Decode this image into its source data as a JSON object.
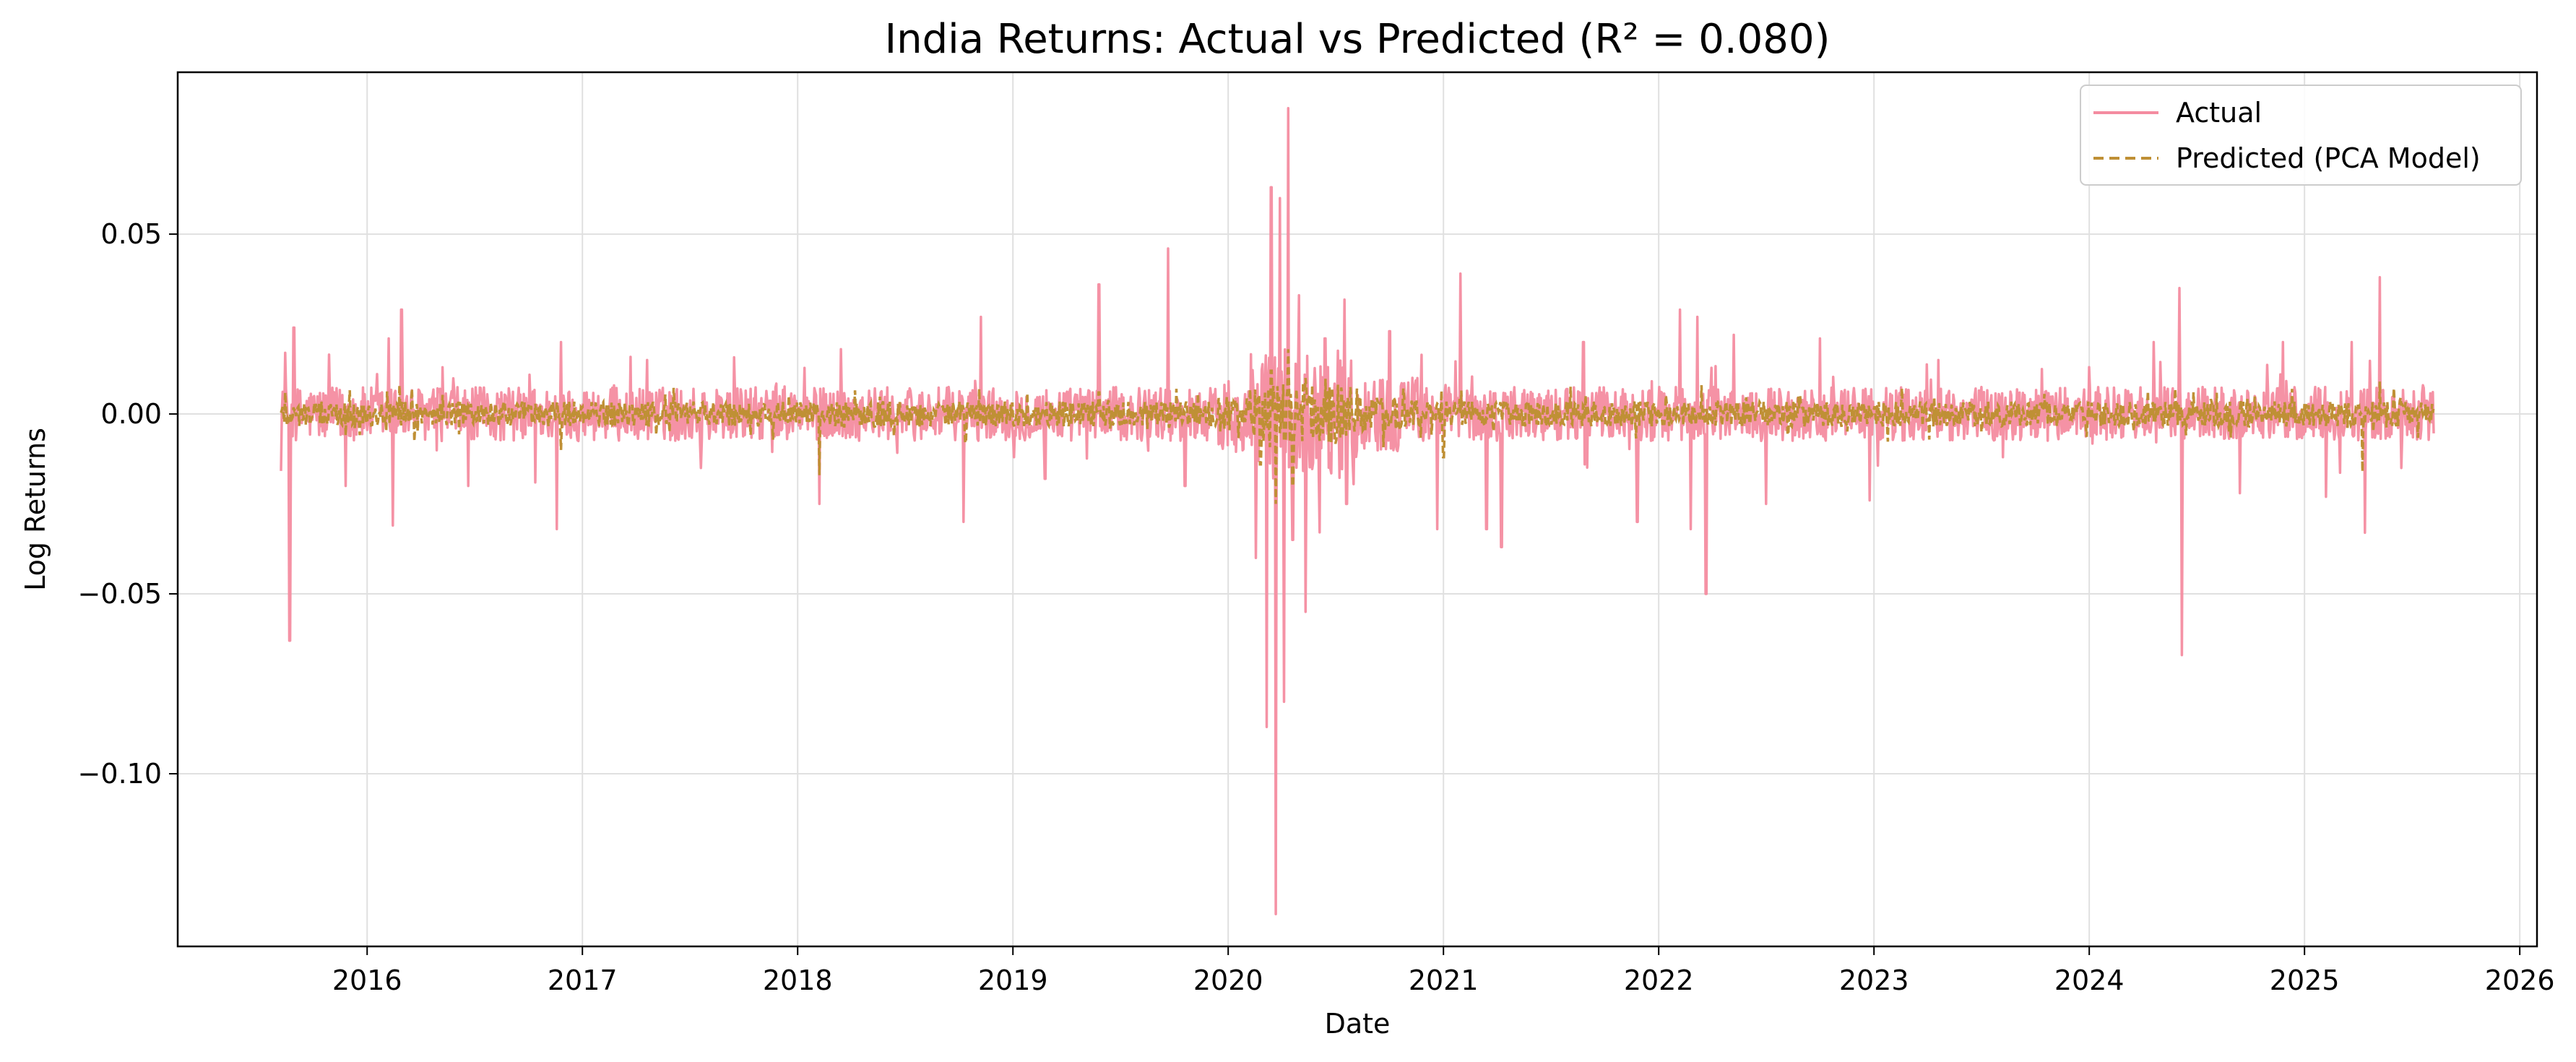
{
  "chart_data": {
    "type": "line",
    "title": "India Returns: Actual vs Predicted (R² = 0.080)",
    "xlabel": "Date",
    "ylabel": "Log Returns",
    "xlim": [
      2015.12,
      2026.08
    ],
    "ylim": [
      -0.148,
      0.095
    ],
    "x_ticks": [
      2016,
      2017,
      2018,
      2019,
      2020,
      2021,
      2022,
      2023,
      2024,
      2025,
      2026
    ],
    "y_ticks": [
      0.05,
      0.0,
      -0.05,
      -0.1
    ],
    "y_tick_labels": [
      "0.05",
      "0.00",
      "−0.05",
      "−0.10"
    ],
    "grid": true,
    "legend_position": "top-right",
    "series": [
      {
        "name": "Actual",
        "color": "#f48ca0",
        "style": "solid",
        "x_start": 2015.6,
        "x_end": 2025.6,
        "spikes": [
          [
            2015.62,
            0.017
          ],
          [
            2015.64,
            -0.063
          ],
          [
            2015.66,
            0.024
          ],
          [
            2015.9,
            -0.02
          ],
          [
            2016.1,
            0.021
          ],
          [
            2016.12,
            -0.031
          ],
          [
            2016.16,
            0.029
          ],
          [
            2016.47,
            -0.02
          ],
          [
            2016.78,
            -0.019
          ],
          [
            2016.88,
            -0.032
          ],
          [
            2016.9,
            0.02
          ],
          [
            2017.3,
            0.015
          ],
          [
            2017.55,
            -0.015
          ],
          [
            2018.1,
            -0.025
          ],
          [
            2018.2,
            0.018
          ],
          [
            2018.77,
            -0.03
          ],
          [
            2018.85,
            0.027
          ],
          [
            2019.15,
            -0.018
          ],
          [
            2019.4,
            0.036
          ],
          [
            2019.72,
            0.046
          ],
          [
            2019.8,
            -0.02
          ],
          [
            2020.13,
            -0.04
          ],
          [
            2020.18,
            -0.087
          ],
          [
            2020.2,
            0.063
          ],
          [
            2020.22,
            -0.139
          ],
          [
            2020.24,
            0.06
          ],
          [
            2020.26,
            -0.08
          ],
          [
            2020.28,
            0.085
          ],
          [
            2020.3,
            -0.035
          ],
          [
            2020.33,
            0.033
          ],
          [
            2020.36,
            -0.055
          ],
          [
            2020.45,
            0.021
          ],
          [
            2020.55,
            -0.025
          ],
          [
            2020.75,
            0.023
          ],
          [
            2020.97,
            -0.032
          ],
          [
            2021.08,
            0.039
          ],
          [
            2021.2,
            -0.032
          ],
          [
            2021.27,
            -0.037
          ],
          [
            2021.65,
            0.02
          ],
          [
            2021.9,
            -0.03
          ],
          [
            2022.1,
            0.029
          ],
          [
            2022.15,
            -0.032
          ],
          [
            2022.18,
            0.027
          ],
          [
            2022.22,
            -0.05
          ],
          [
            2022.35,
            0.022
          ],
          [
            2022.5,
            -0.025
          ],
          [
            2022.75,
            0.021
          ],
          [
            2022.98,
            -0.024
          ],
          [
            2023.3,
            0.015
          ],
          [
            2023.6,
            -0.012
          ],
          [
            2024.0,
            0.013
          ],
          [
            2024.3,
            0.02
          ],
          [
            2024.42,
            0.035
          ],
          [
            2024.43,
            -0.067
          ],
          [
            2024.7,
            -0.022
          ],
          [
            2024.9,
            0.02
          ],
          [
            2025.1,
            -0.023
          ],
          [
            2025.22,
            0.02
          ],
          [
            2025.28,
            -0.033
          ],
          [
            2025.35,
            0.038
          ],
          [
            2025.45,
            -0.015
          ],
          [
            2025.55,
            0.008
          ]
        ]
      },
      {
        "name": "Predicted (PCA Model)",
        "color": "#bf9035",
        "style": "dashed",
        "x_start": 2015.6,
        "x_end": 2025.6,
        "spikes": [
          [
            2015.62,
            0.006
          ],
          [
            2015.9,
            -0.006
          ],
          [
            2016.15,
            0.008
          ],
          [
            2016.9,
            -0.01
          ],
          [
            2018.1,
            -0.017
          ],
          [
            2018.78,
            -0.008
          ],
          [
            2019.4,
            0.006
          ],
          [
            2020.15,
            -0.014
          ],
          [
            2020.2,
            0.012
          ],
          [
            2020.22,
            -0.025
          ],
          [
            2020.28,
            0.018
          ],
          [
            2020.3,
            -0.02
          ],
          [
            2020.36,
            0.01
          ],
          [
            2021.0,
            -0.012
          ],
          [
            2022.2,
            0.008
          ],
          [
            2023.5,
            -0.005
          ],
          [
            2024.4,
            0.007
          ],
          [
            2025.27,
            -0.016
          ],
          [
            2025.35,
            0.009
          ]
        ]
      }
    ]
  }
}
